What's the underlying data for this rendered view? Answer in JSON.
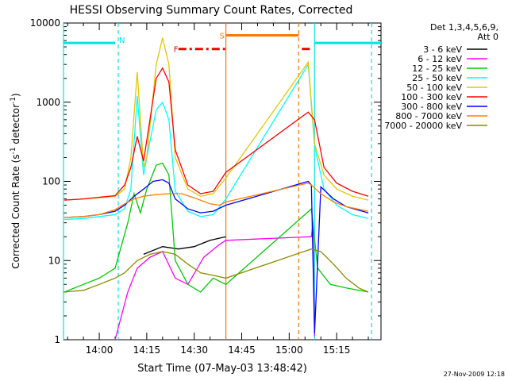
{
  "chart_data": {
    "type": "line",
    "title": "HESSI Observing Summary Count Rates, Corrected",
    "xlabel": "Start Time (07-May-03 13:48:42)",
    "ylabel": "Corrected Count Rate (s",
    "ylabel_sup1": "-1",
    "ylabel_mid": " detector",
    "ylabel_sup2": "-1",
    "ylabel_end": ")",
    "y_scale": "log",
    "ylim": [
      1,
      10000
    ],
    "xlim": [
      "13:48:42",
      "15:29:00"
    ],
    "y_ticks": [
      {
        "value": 1,
        "label": "1"
      },
      {
        "value": 10,
        "label": "10"
      },
      {
        "value": 100,
        "label": "100"
      },
      {
        "value": 1000,
        "label": "1000"
      },
      {
        "value": 10000,
        "label": "10000"
      }
    ],
    "x_ticks": [
      {
        "time": "14:00",
        "label": "14:00"
      },
      {
        "time": "14:15",
        "label": "14:15"
      },
      {
        "time": "14:30",
        "label": "14:30"
      },
      {
        "time": "14:45",
        "label": "14:45"
      },
      {
        "time": "15:00",
        "label": "15:00"
      },
      {
        "time": "15:15",
        "label": "15:15"
      }
    ],
    "legend": {
      "placement": "right",
      "header1": "Det 1,3,4,5,6,9,",
      "header2": "Att 0"
    },
    "series": [
      {
        "name": "3 - 6 keV",
        "color": "#000000",
        "points": [
          [
            "14:08",
            0
          ],
          [
            "14:14",
            12
          ],
          [
            "14:20",
            15
          ],
          [
            "14:25",
            14
          ],
          [
            "14:30",
            15
          ],
          [
            "14:35",
            18
          ],
          [
            "14:40",
            20
          ]
        ]
      },
      {
        "name": "6 - 12 keV",
        "color": "#ff00ff",
        "points": [
          [
            "14:05",
            1
          ],
          [
            "14:09",
            4
          ],
          [
            "14:12",
            8
          ],
          [
            "14:16",
            11
          ],
          [
            "14:20",
            13
          ],
          [
            "14:24",
            6
          ],
          [
            "14:28",
            5
          ],
          [
            "14:33",
            11
          ],
          [
            "14:38",
            16
          ],
          [
            "14:40",
            18
          ],
          [
            "15:07",
            20
          ],
          [
            "15:07.5",
            30
          ],
          [
            "15:08",
            1.1
          ]
        ]
      },
      {
        "name": "12 - 25 keV",
        "color": "#00cc00",
        "points": [
          [
            "13:49",
            4
          ],
          [
            "13:55",
            5
          ],
          [
            "14:00",
            6
          ],
          [
            "14:05",
            8
          ],
          [
            "14:09",
            30
          ],
          [
            "14:11",
            70
          ],
          [
            "14:13",
            40
          ],
          [
            "14:15",
            80
          ],
          [
            "14:18",
            160
          ],
          [
            "14:20",
            170
          ],
          [
            "14:22",
            120
          ],
          [
            "14:24",
            10
          ],
          [
            "14:28",
            5
          ],
          [
            "14:32",
            4
          ],
          [
            "14:36",
            6
          ],
          [
            "14:40",
            5
          ],
          [
            "15:07",
            45
          ],
          [
            "15:09",
            8
          ],
          [
            "15:13",
            5
          ],
          [
            "15:18",
            4.5
          ],
          [
            "15:25",
            4
          ]
        ]
      },
      {
        "name": "25 - 50 keV",
        "color": "#00ffff",
        "points": [
          [
            "13:49",
            33
          ],
          [
            "13:55",
            34
          ],
          [
            "14:00",
            36
          ],
          [
            "14:05",
            38
          ],
          [
            "14:08",
            45
          ],
          [
            "14:10",
            80
          ],
          [
            "14:12",
            1200
          ],
          [
            "14:14",
            120
          ],
          [
            "14:15",
            200
          ],
          [
            "14:18",
            800
          ],
          [
            "14:20",
            1000
          ],
          [
            "14:22",
            600
          ],
          [
            "14:24",
            75
          ],
          [
            "14:28",
            42
          ],
          [
            "14:32",
            36
          ],
          [
            "14:36",
            38
          ],
          [
            "14:40",
            60
          ],
          [
            "15:06",
            3000
          ],
          [
            "15:08",
            280
          ],
          [
            "15:11",
            80
          ],
          [
            "15:15",
            50
          ],
          [
            "15:20",
            38
          ],
          [
            "15:25",
            34
          ]
        ]
      },
      {
        "name": "50 - 100 keV",
        "color": "#e5c700",
        "points": [
          [
            "13:49",
            58
          ],
          [
            "13:55",
            60
          ],
          [
            "14:00",
            62
          ],
          [
            "14:05",
            65
          ],
          [
            "14:08",
            80
          ],
          [
            "14:10",
            200
          ],
          [
            "14:12",
            2400
          ],
          [
            "14:14",
            150
          ],
          [
            "14:15",
            200
          ],
          [
            "14:18",
            3000
          ],
          [
            "14:20",
            6500
          ],
          [
            "14:22",
            3000
          ],
          [
            "14:24",
            200
          ],
          [
            "14:28",
            80
          ],
          [
            "14:32",
            65
          ],
          [
            "14:36",
            70
          ],
          [
            "14:40",
            110
          ],
          [
            "15:06",
            3200
          ],
          [
            "15:08",
            300
          ],
          [
            "15:11",
            120
          ],
          [
            "15:15",
            80
          ],
          [
            "15:20",
            65
          ],
          [
            "15:25",
            58
          ]
        ]
      },
      {
        "name": "100 - 300 keV",
        "color": "#ff0000",
        "points": [
          [
            "13:49",
            58
          ],
          [
            "13:55",
            60
          ],
          [
            "14:00",
            63
          ],
          [
            "14:05",
            66
          ],
          [
            "14:08",
            90
          ],
          [
            "14:10",
            150
          ],
          [
            "14:12",
            370
          ],
          [
            "14:14",
            180
          ],
          [
            "14:16",
            600
          ],
          [
            "14:18",
            2000
          ],
          [
            "14:20",
            2700
          ],
          [
            "14:22",
            1800
          ],
          [
            "14:24",
            250
          ],
          [
            "14:28",
            90
          ],
          [
            "14:32",
            70
          ],
          [
            "14:36",
            75
          ],
          [
            "14:40",
            130
          ],
          [
            "15:06",
            750
          ],
          [
            "15:08",
            600
          ],
          [
            "15:11",
            150
          ],
          [
            "15:15",
            95
          ],
          [
            "15:20",
            75
          ],
          [
            "15:25",
            65
          ]
        ]
      },
      {
        "name": "300 - 800 keV",
        "color": "#0000ff",
        "points": [
          [
            "13:49",
            35
          ],
          [
            "13:55",
            36
          ],
          [
            "14:00",
            38
          ],
          [
            "14:05",
            42
          ],
          [
            "14:08",
            50
          ],
          [
            "14:11",
            65
          ],
          [
            "14:14",
            80
          ],
          [
            "14:17",
            100
          ],
          [
            "14:20",
            105
          ],
          [
            "14:22",
            95
          ],
          [
            "14:24",
            60
          ],
          [
            "14:28",
            45
          ],
          [
            "14:32",
            40
          ],
          [
            "14:36",
            42
          ],
          [
            "14:40",
            50
          ],
          [
            "15:06",
            100
          ],
          [
            "15:07",
            90
          ],
          [
            "15:08",
            1.2
          ],
          [
            "15:10",
            85
          ],
          [
            "15:14",
            60
          ],
          [
            "15:18",
            48
          ],
          [
            "15:25",
            40
          ]
        ]
      },
      {
        "name": "800 - 7000 keV",
        "color": "#ff8000",
        "points": [
          [
            "13:49",
            35
          ],
          [
            "13:55",
            36
          ],
          [
            "14:00",
            38
          ],
          [
            "14:05",
            44
          ],
          [
            "14:08",
            52
          ],
          [
            "14:11",
            60
          ],
          [
            "14:14",
            65
          ],
          [
            "14:18",
            68
          ],
          [
            "14:22",
            70
          ],
          [
            "14:26",
            70
          ],
          [
            "14:30",
            62
          ],
          [
            "14:35",
            52
          ],
          [
            "14:38",
            50
          ],
          [
            "14:40",
            55
          ],
          [
            "15:06",
            95
          ],
          [
            "15:07",
            90
          ],
          [
            "15:10",
            70
          ],
          [
            "15:14",
            55
          ],
          [
            "15:18",
            48
          ],
          [
            "15:25",
            42
          ]
        ]
      },
      {
        "name": "7000 - 20000 keV",
        "color": "#8c8c00",
        "points": [
          [
            "13:49",
            4
          ],
          [
            "13:55",
            4.2
          ],
          [
            "14:00",
            5
          ],
          [
            "14:05",
            6
          ],
          [
            "14:08",
            7
          ],
          [
            "14:12",
            10
          ],
          [
            "14:16",
            12
          ],
          [
            "14:20",
            13
          ],
          [
            "14:24",
            12
          ],
          [
            "14:28",
            9
          ],
          [
            "14:32",
            7
          ],
          [
            "14:36",
            6.5
          ],
          [
            "14:40",
            6
          ],
          [
            "15:07",
            14
          ],
          [
            "15:10",
            13
          ],
          [
            "15:14",
            9
          ],
          [
            "15:18",
            6
          ],
          [
            "15:22",
            4.5
          ],
          [
            "15:25",
            4
          ]
        ]
      }
    ],
    "flag_bars": [
      {
        "label": "N",
        "color": "#00e5e5",
        "level": 5600,
        "segments": [
          [
            "13:48:42",
            "14:05"
          ],
          [
            "15:08",
            "15:29"
          ]
        ]
      },
      {
        "label": "F",
        "color": "#ee0000",
        "level": 4700,
        "dashed": true,
        "segments": [
          [
            "14:25",
            "14:40"
          ],
          [
            "15:04",
            "15:07"
          ]
        ]
      },
      {
        "label": "S",
        "color": "#ff7700",
        "level": 7000,
        "segments": [
          [
            "14:40",
            "15:03"
          ]
        ]
      }
    ],
    "vertical_markers": [
      {
        "time": "13:48:42",
        "color": "#00e5e5",
        "dashed": false
      },
      {
        "time": "14:06",
        "color": "#00e5e5",
        "dashed": true
      },
      {
        "time": "14:40",
        "color": "#ff7700",
        "dashed": false
      },
      {
        "time": "15:03",
        "color": "#ff7700",
        "dashed": true
      },
      {
        "time": "15:08",
        "color": "#00e5e5",
        "dashed": false
      },
      {
        "time": "15:26",
        "color": "#00e5e5",
        "dashed": true
      }
    ],
    "gap": [
      "14:40",
      "15:06"
    ]
  },
  "timestamp": "27-Nov-2009 12:18"
}
